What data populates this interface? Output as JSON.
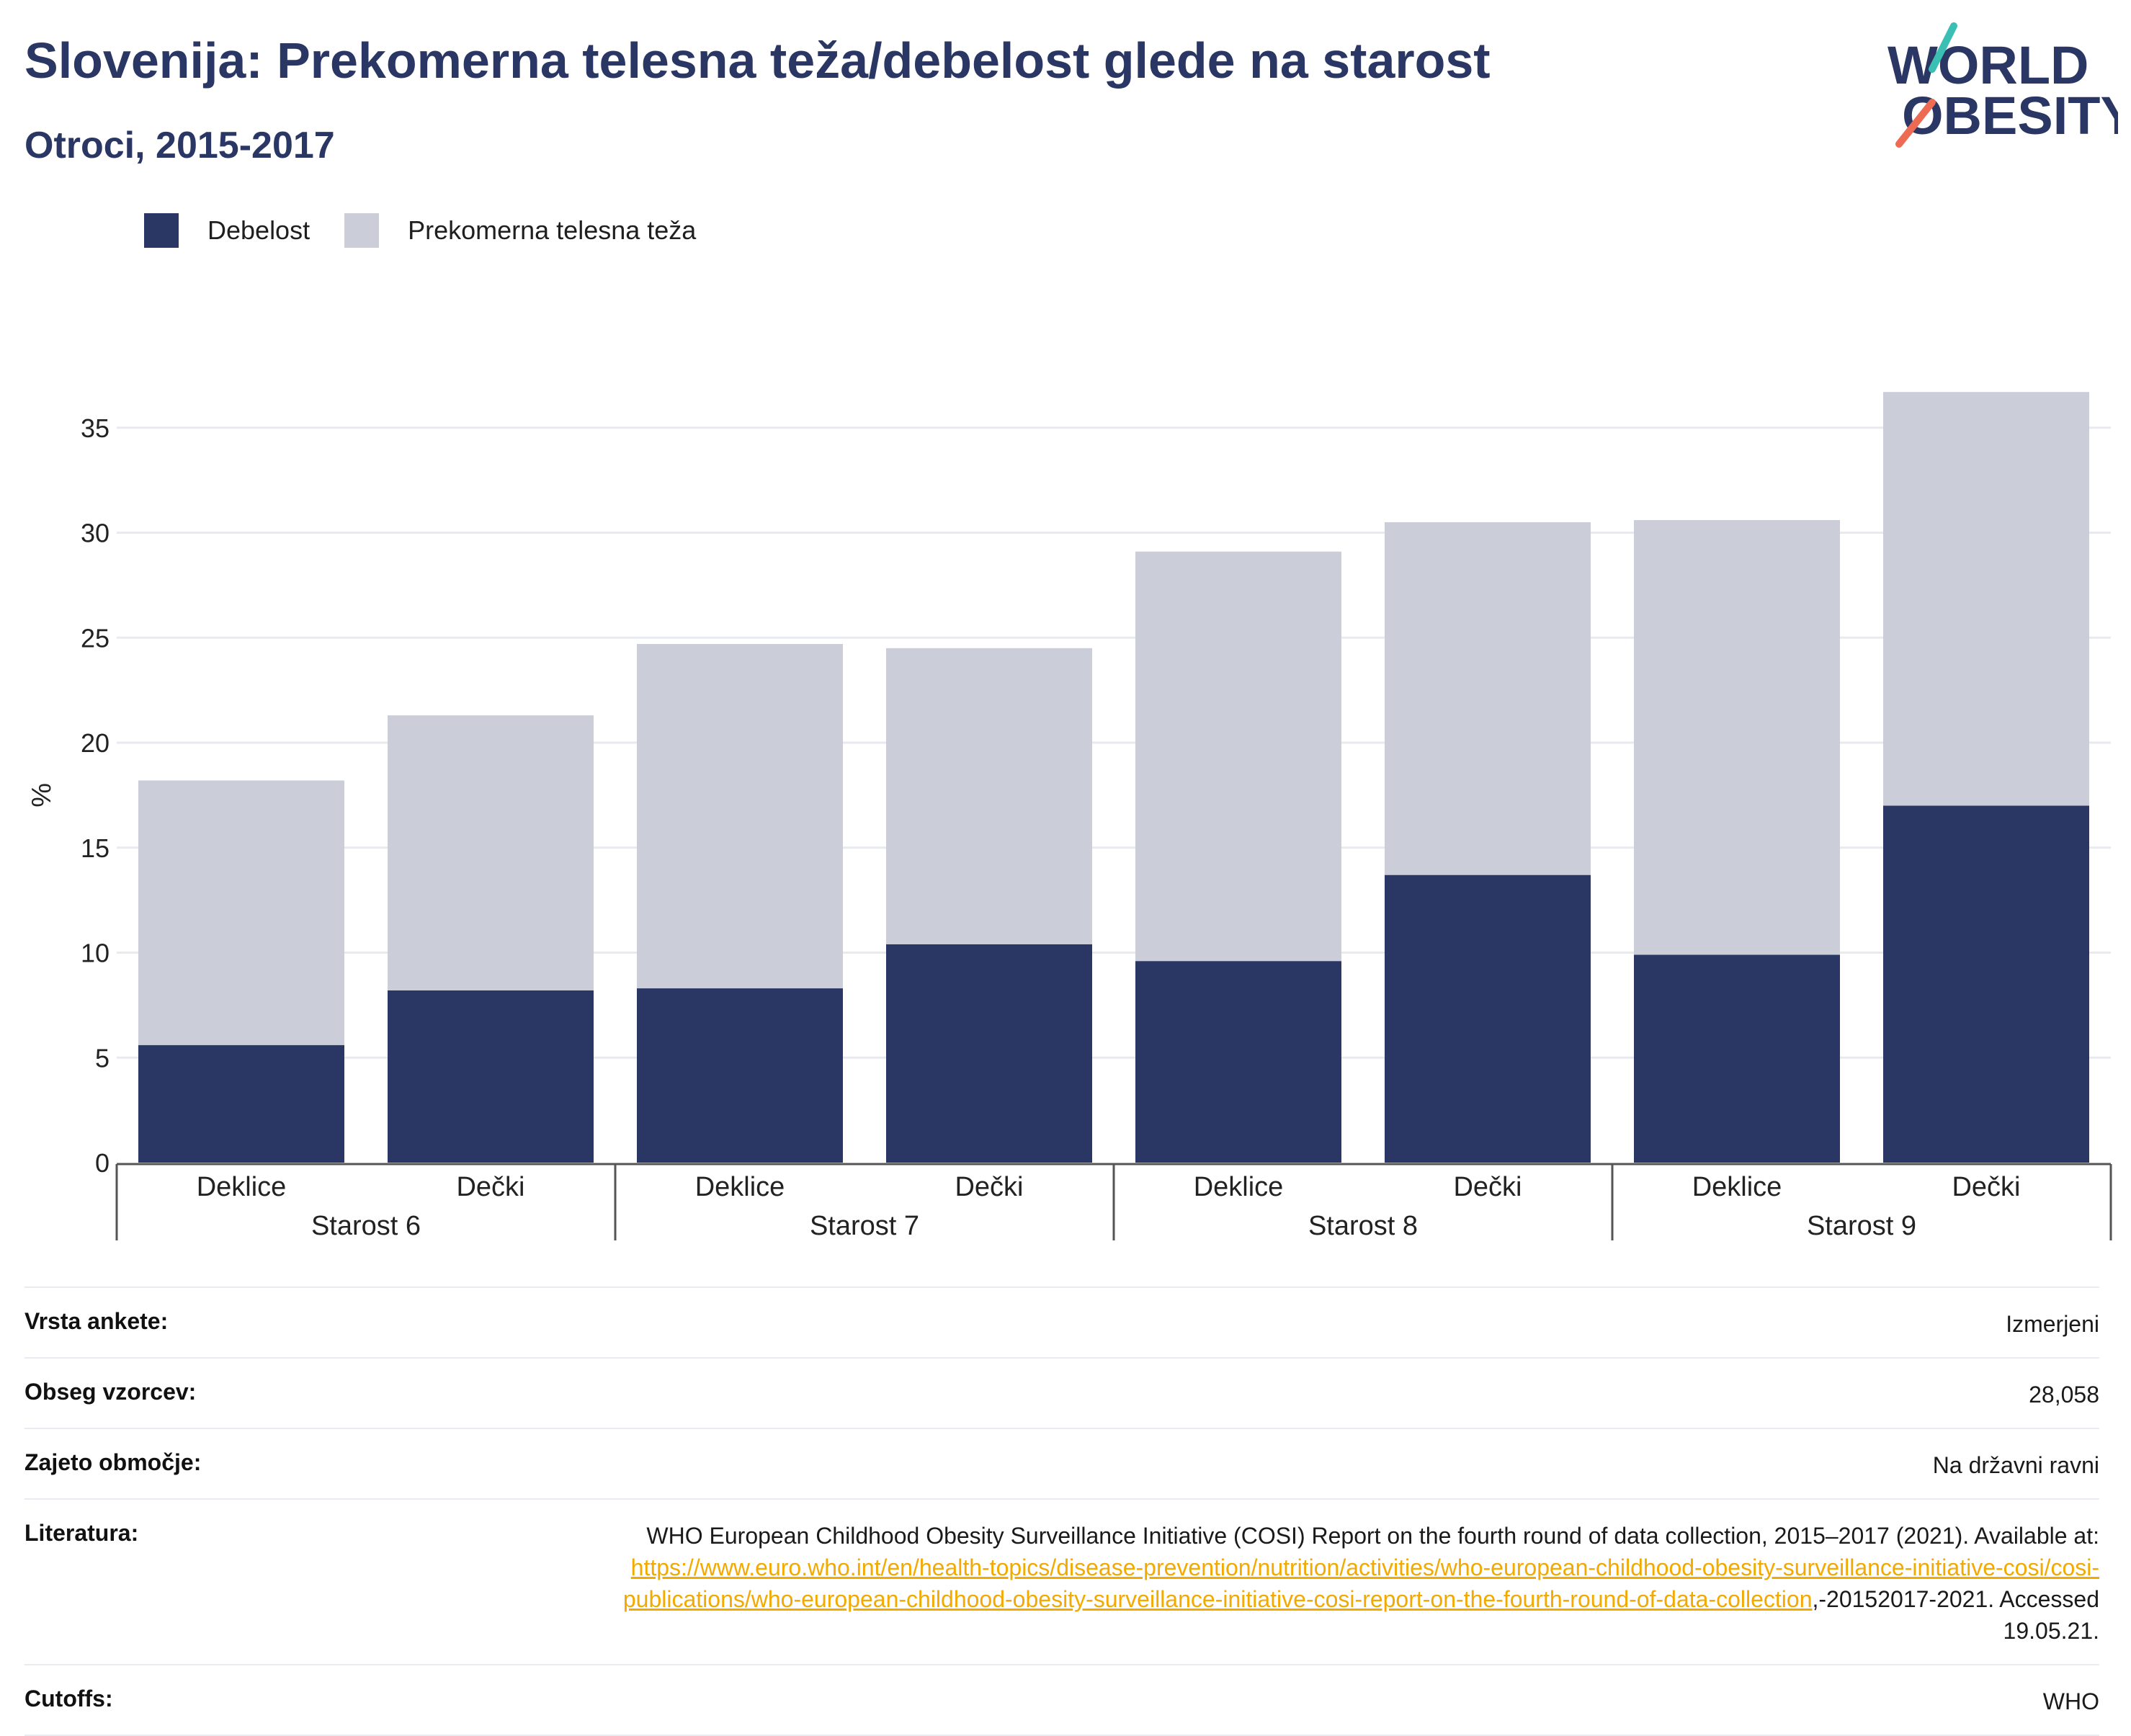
{
  "header": {
    "title": "Slovenija: Prekomerna telesna teža/debelost glede na starost",
    "subtitle": "Otroci, 2015-2017",
    "logo_line1": "WORLD",
    "logo_line2": "OBESITY"
  },
  "legend": {
    "items": [
      {
        "label": "Debelost",
        "color": "#2a3663"
      },
      {
        "label": "Prekomerna telesna teža",
        "color": "#cbcdd8"
      }
    ]
  },
  "chart_data": {
    "type": "bar",
    "stacked": true,
    "ylabel": "%",
    "ylim": [
      0,
      37
    ],
    "yticks": [
      0,
      5,
      10,
      15,
      20,
      25,
      30,
      35
    ],
    "grid": true,
    "legend_position": "top-left",
    "groups": [
      "Starost 6",
      "Starost 7",
      "Starost 8",
      "Starost 9"
    ],
    "categories": [
      "Deklice",
      "Dečki",
      "Deklice",
      "Dečki",
      "Deklice",
      "Dečki",
      "Deklice",
      "Dečki"
    ],
    "series": [
      {
        "name": "Debelost",
        "color": "#2a3663",
        "values": [
          5.6,
          8.2,
          8.3,
          10.4,
          9.6,
          13.7,
          9.9,
          17.0
        ]
      },
      {
        "name": "Prekomerna telesna teža",
        "color": "#cbcdd8",
        "values": [
          12.6,
          13.1,
          16.4,
          14.1,
          19.5,
          16.8,
          20.7,
          19.7
        ]
      }
    ]
  },
  "info": {
    "survey_label": "Vrsta ankete:",
    "survey_value": "Izmerjeni",
    "sample_label": "Obseg vzorcev:",
    "sample_value": "28,058",
    "area_label": "Zajeto območje:",
    "area_value": "Na državni ravni",
    "ref_label": "Literatura:",
    "ref_text1": "WHO European Childhood Obesity Surveillance Initiative (COSI) Report on the fourth round of data collection, 2015–2017 (2021).",
    "ref_available": "Available at: ",
    "ref_url": "https://www.euro.who.int/en/health-topics/disease-prevention/nutrition/activities/who-european-childhood-obesity-surveillance-initiative-cosi/cosi-publications/who-european-childhood-obesity-surveillance-initiative-cosi-report-on-the-fourth-round-of-data-collection",
    "ref_tail": ",-20152017-2021. Accessed 19.05.21.",
    "cutoffs_label": "Cutoffs:",
    "cutoffs_value": "WHO"
  }
}
